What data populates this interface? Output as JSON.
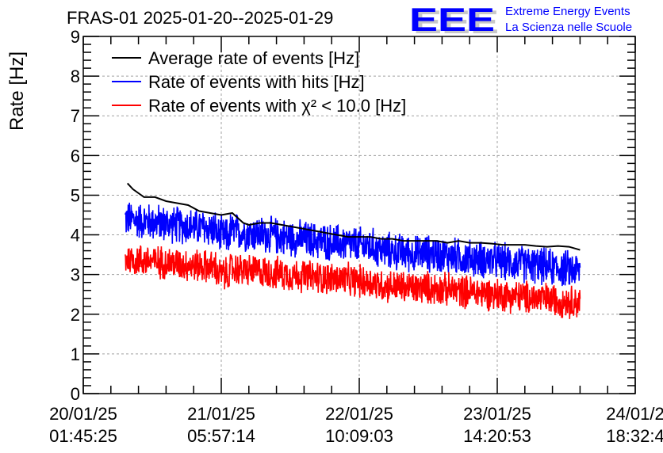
{
  "chart_data": {
    "type": "line",
    "title": "FRAS-01 2025-01-20--2025-01-29",
    "xlabel": "",
    "ylabel": "Rate [Hz]",
    "ylim": [
      0,
      9
    ],
    "yticks": [
      "0",
      "1",
      "2",
      "3",
      "4",
      "5",
      "6",
      "7",
      "8",
      "9"
    ],
    "x_tick_labels": [
      {
        "date": "20/01/25",
        "time": "01:45:25"
      },
      {
        "date": "21/01/25",
        "time": "05:57:14"
      },
      {
        "date": "22/01/25",
        "time": "10:09:03"
      },
      {
        "date": "23/01/25",
        "time": "14:20:53"
      },
      {
        "date": "24/01/2",
        "time": "18:32:4"
      }
    ],
    "x_unit": "fraction of axis (0 = 20/01/25 01:45:25, 1 = right edge)",
    "grid": true,
    "legend_position": "top-left",
    "legend": [
      {
        "label": "Average rate of events [Hz]",
        "color": "#000000"
      },
      {
        "label": "Rate of events with hits [Hz]",
        "color": "#0000ff"
      },
      {
        "label": "Rate of events with χ² < 10.0 [Hz]",
        "color": "#ff0000"
      }
    ],
    "series": [
      {
        "name": "Average rate of events [Hz]",
        "color": "#000000",
        "x": [
          0.08,
          0.09,
          0.11,
          0.13,
          0.15,
          0.17,
          0.19,
          0.21,
          0.23,
          0.25,
          0.27,
          0.29,
          0.3,
          0.32,
          0.34,
          0.36,
          0.38,
          0.4,
          0.42,
          0.44,
          0.46,
          0.48,
          0.5,
          0.52,
          0.54,
          0.56,
          0.58,
          0.6,
          0.62,
          0.64,
          0.66,
          0.68,
          0.7,
          0.72,
          0.74,
          0.76,
          0.78,
          0.8,
          0.82,
          0.84,
          0.86,
          0.88,
          0.9
        ],
        "values": [
          5.3,
          5.15,
          4.95,
          4.95,
          4.85,
          4.8,
          4.75,
          4.6,
          4.55,
          4.5,
          4.55,
          4.3,
          4.25,
          4.3,
          4.3,
          4.25,
          4.2,
          4.15,
          4.1,
          4.05,
          4.0,
          3.95,
          3.95,
          3.95,
          3.9,
          3.9,
          3.85,
          3.85,
          3.85,
          3.85,
          3.8,
          3.85,
          3.8,
          3.8,
          3.78,
          3.75,
          3.75,
          3.75,
          3.72,
          3.7,
          3.72,
          3.7,
          3.62
        ]
      },
      {
        "name": "Rate of events with hits [Hz]",
        "color": "#0000ff",
        "x_range": [
          0.076,
          0.9
        ],
        "trend_start": 4.4,
        "trend_end": 3.1,
        "noise_amplitude": 0.45,
        "note": "dense noisy signal; trend approximated"
      },
      {
        "name": "Rate of events with χ² < 10.0 [Hz]",
        "color": "#ff0000",
        "x_range": [
          0.076,
          0.9
        ],
        "trend_start": 3.4,
        "trend_end": 2.3,
        "noise_amplitude": 0.4,
        "note": "dense noisy signal; trend approximated"
      }
    ]
  },
  "logo": {
    "mark": "EEE",
    "line1": "Extreme Energy Events",
    "line2": "La Scienza nelle Scuole",
    "color": "#0000ff"
  }
}
